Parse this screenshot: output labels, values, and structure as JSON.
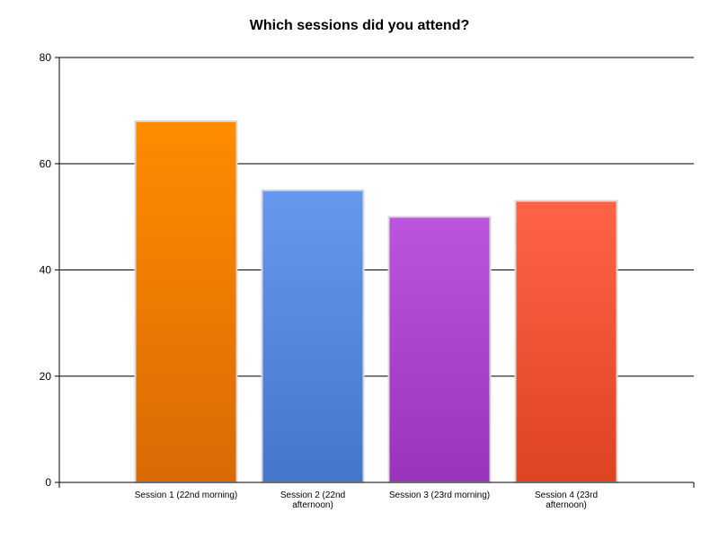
{
  "chart_data": {
    "type": "bar",
    "title": "Which sessions did you attend?",
    "xlabel": "",
    "ylabel": "",
    "categories": [
      [
        "Session 1 (22nd morning)"
      ],
      [
        "Session 2 (22nd",
        "afternoon)"
      ],
      [
        "Session 3 (23rd morning)"
      ],
      [
        "Session 4 (23rd",
        "afternoon)"
      ]
    ],
    "values": [
      68,
      55,
      50,
      53
    ],
    "ylim": [
      0,
      80
    ],
    "yticks": [
      0,
      20,
      40,
      60,
      80
    ],
    "grid": true,
    "legend": "none",
    "colors": [
      {
        "top": "#ff8c00",
        "bottom": "#d86a04"
      },
      {
        "top": "#6699ee",
        "bottom": "#4477cc"
      },
      {
        "top": "#bb55dd",
        "bottom": "#9933bb"
      },
      {
        "top": "#ff6347",
        "bottom": "#dd4422"
      }
    ]
  }
}
